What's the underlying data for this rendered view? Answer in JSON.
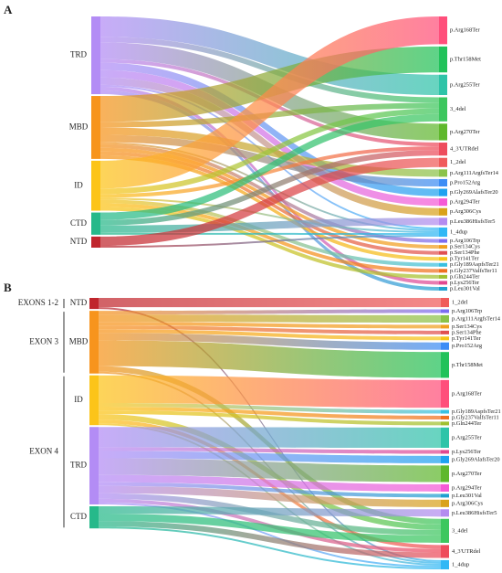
{
  "chart_data": [
    {
      "type": "sankey",
      "panel": "A",
      "categories": [
        "p.Arg168Ter",
        "p.Thr158Met",
        "p.Arg255Ter",
        "3_4del",
        "p.Arg270Ter",
        "4_3'UTRdel",
        "1_2del",
        "p.Arg111ArgfsTer14",
        "p.Pro152Arg",
        "p.Gly269AlafsTer20",
        "p.Arg294Ter",
        "p.Arg306Cys",
        "p.Leu386HisfsTer5",
        "1_4dup",
        "p.Arg106Trp",
        "p.Ser134Cys",
        "p.Ser134Phe",
        "p.Tyr141Ter",
        "p.Gly189AspfsTer21",
        "p.Gly237ValfsTer11",
        "p.Gln244Ter",
        "p.Lys256Ter",
        "p.Leu301Val"
      ],
      "category_colors": [
        "#ff4f7b",
        "#21c25a",
        "#2ec4a8",
        "#3cc75e",
        "#5fb82c",
        "#ee4c5c",
        "#f05b5b",
        "#8bc34a",
        "#3d8df5",
        "#1fa2f0",
        "#f55ad6",
        "#d9a21b",
        "#b48cf0",
        "#31b8f5",
        "#7c6cf0",
        "#f0a020",
        "#e05050",
        "#f5c518",
        "#39c0e0",
        "#f07020",
        "#a0c030",
        "#e04890",
        "#20a0d0"
      ],
      "series": [
        {
          "name": "TRD",
          "color": "#b38cf5",
          "values": [
            null,
            null,
            11,
            3,
            9,
            2,
            null,
            null,
            null,
            4,
            4,
            4,
            null,
            1,
            null,
            null,
            null,
            null,
            null,
            null,
            null,
            2,
            2
          ]
        },
        {
          "name": "MBD",
          "color": "#f7941d",
          "values": [
            null,
            14,
            null,
            3,
            null,
            null,
            null,
            4,
            4,
            null,
            null,
            null,
            null,
            1,
            2,
            2,
            2,
            2,
            null,
            null,
            null,
            null,
            null
          ]
        },
        {
          "name": "ID",
          "color": "#fcc419",
          "values": [
            15,
            null,
            null,
            3,
            null,
            2,
            null,
            null,
            null,
            null,
            null,
            null,
            null,
            1,
            null,
            null,
            null,
            null,
            2,
            2,
            2,
            null,
            null
          ]
        },
        {
          "name": "CTD",
          "color": "#26b98a",
          "values": [
            null,
            null,
            null,
            4,
            null,
            3,
            null,
            null,
            null,
            null,
            null,
            null,
            4,
            1,
            null,
            null,
            null,
            null,
            null,
            null,
            null,
            null,
            null
          ]
        },
        {
          "name": "NTD",
          "color": "#c0262d",
          "values": [
            null,
            null,
            null,
            null,
            null,
            null,
            5,
            null,
            null,
            null,
            null,
            null,
            null,
            1,
            null,
            null,
            null,
            null,
            null,
            null,
            null,
            null,
            null
          ]
        }
      ]
    },
    {
      "type": "sankey",
      "panel": "B",
      "groups": [
        "EXONS 1-2",
        "EXON 3",
        "EXON 4"
      ],
      "categories": [
        "1_2del",
        "p.Arg106Trp",
        "p.Arg111ArgfsTer14",
        "p.Ser134Cys",
        "p.Ser134Phe",
        "p.Tyr141Ter",
        "p.Pro152Arg",
        "p.Thr158Met",
        "p.Arg168Ter",
        "p.Gly189AspfsTer21",
        "p.Gly237ValfsTer11",
        "p.Gln244Ter",
        "p.Arg255Ter",
        "p.Lys256Ter",
        "p.Gly269AlafsTer20",
        "p.Arg270Ter",
        "p.Arg294Ter",
        "p.Leu301Val",
        "p.Arg306Cys",
        "p.Leu386HisfsTer5",
        "3_4del",
        "4_3'UTRdel",
        "1_4dup"
      ],
      "category_colors": [
        "#f05b5b",
        "#7c6cf0",
        "#8bc34a",
        "#f0a020",
        "#e05050",
        "#f5c518",
        "#3d8df5",
        "#21c25a",
        "#ff4f7b",
        "#39c0e0",
        "#f07020",
        "#a0c030",
        "#2ec4a8",
        "#e04890",
        "#1fa2f0",
        "#5fb82c",
        "#f55ad6",
        "#20a0d0",
        "#d9a21b",
        "#b48cf0",
        "#3cc75e",
        "#ee4c5c",
        "#31b8f5"
      ],
      "series": [
        {
          "name": "NTD",
          "color": "#c0262d",
          "values": [
            5,
            null,
            null,
            null,
            null,
            null,
            null,
            null,
            null,
            null,
            null,
            null,
            null,
            null,
            null,
            null,
            null,
            null,
            null,
            null,
            null,
            null,
            1
          ]
        },
        {
          "name": "MBD",
          "color": "#f7941d",
          "values": [
            null,
            2,
            4,
            2,
            2,
            2,
            4,
            14,
            null,
            null,
            null,
            null,
            null,
            null,
            null,
            null,
            null,
            null,
            null,
            null,
            3,
            null,
            1
          ]
        },
        {
          "name": "ID",
          "color": "#fcc419",
          "values": [
            null,
            null,
            null,
            null,
            null,
            null,
            null,
            null,
            15,
            2,
            2,
            2,
            null,
            null,
            null,
            null,
            null,
            null,
            null,
            null,
            3,
            2,
            1
          ]
        },
        {
          "name": "TRD",
          "color": "#b38cf5",
          "values": [
            null,
            null,
            null,
            null,
            null,
            null,
            null,
            null,
            null,
            null,
            null,
            null,
            11,
            2,
            4,
            9,
            4,
            2,
            4,
            null,
            3,
            2,
            1
          ]
        },
        {
          "name": "CTD",
          "color": "#26b98a",
          "values": [
            null,
            null,
            null,
            null,
            null,
            null,
            null,
            null,
            null,
            null,
            null,
            null,
            null,
            null,
            null,
            null,
            null,
            null,
            null,
            4,
            4,
            3,
            1
          ]
        }
      ]
    }
  ]
}
